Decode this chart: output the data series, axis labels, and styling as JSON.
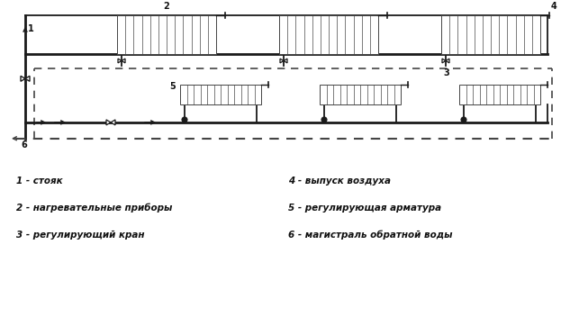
{
  "background_color": "#ffffff",
  "line_color": "#1a1a1a",
  "dashed_color": "#444444",
  "radiator_color": "#444444",
  "text_color": "#111111",
  "legend": [
    [
      "1 - стояк",
      "4 - выпуск воздуха"
    ],
    [
      "2 - нагревательные приборы",
      "5 - регулирующая арматура"
    ],
    [
      "3 - регулирующий кран",
      "6 - магистраль обратной воды"
    ]
  ]
}
